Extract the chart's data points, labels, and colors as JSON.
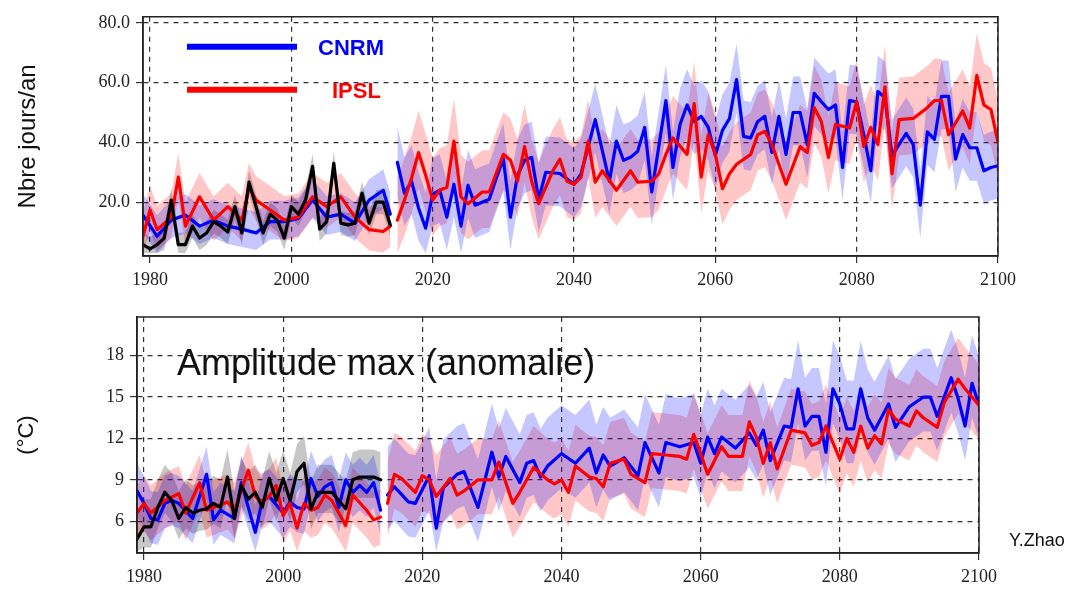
{
  "chart_data": [
    {
      "type": "line",
      "ylabel": "Nbre jours/an",
      "legend": "top left",
      "grid": true,
      "xlim": [
        1979,
        2100
      ],
      "xticks": [
        1980,
        2000,
        2020,
        2040,
        2060,
        2080,
        2100
      ],
      "ylim": [
        2,
        82
      ],
      "yticks": [
        {
          "value": 20,
          "label": "20.0"
        },
        {
          "value": 40,
          "label": "40.0"
        },
        {
          "value": 60,
          "label": "60.0"
        },
        {
          "value": 80,
          "label": "80.0"
        }
      ],
      "series": [
        {
          "name": "CNRM",
          "color": "#0000ff",
          "x": [
            1979,
            1981,
            1983,
            1985,
            1987,
            1989,
            1991,
            1993,
            1995,
            1997,
            1999,
            2001,
            2003,
            2005,
            2007,
            2009,
            2011,
            2013,
            2014,
            2014.5,
            2015,
            2016,
            2017,
            2018,
            2019,
            2020,
            2021,
            2022,
            2023,
            2024,
            2025,
            2026,
            2027,
            2028,
            2029,
            2030,
            2031,
            2032,
            2033,
            2034,
            2035,
            2036,
            2038,
            2040,
            2041,
            2043,
            2045,
            2046,
            2047,
            2048,
            2049,
            2050,
            2051,
            2053,
            2054,
            2055,
            2056,
            2057,
            2058,
            2059,
            2060,
            2061,
            2062,
            2063,
            2064,
            2065,
            2066,
            2067,
            2068,
            2069,
            2070,
            2071,
            2072,
            2073,
            2074,
            2075,
            2076,
            2077,
            2078,
            2079,
            2080,
            2081,
            2082,
            2083,
            2084,
            2085,
            2087,
            2088,
            2089,
            2090,
            2091,
            2092,
            2093,
            2094,
            2095,
            2096,
            2097,
            2098,
            2099,
            2100
          ],
          "values": [
            15.7,
            8.6,
            14,
            15.7,
            12,
            14,
            12,
            11,
            9.7,
            13.5,
            13.5,
            14.6,
            20.7,
            15,
            16,
            13,
            20.7,
            24,
            16,
            null,
            33.3,
            23,
            27,
            18,
            11.3,
            22.7,
            24,
            15,
            26,
            12,
            25.6,
            19,
            20,
            21,
            28,
            34.5,
            15,
            29,
            34,
            35,
            21,
            30,
            29.6,
            26,
            29.5,
            47.6,
            27,
            40.4,
            34,
            35,
            37,
            45,
            23.4,
            54,
            31.6,
            46,
            52.5,
            47,
            48.7,
            45,
            35.6,
            44,
            48,
            61,
            42,
            41.5,
            47,
            48.7,
            36.6,
            48.7,
            36,
            50,
            50,
            39.3,
            56.4,
            53.6,
            51,
            52.5,
            31.6,
            54,
            53.6,
            42.6,
            30.5,
            57,
            55,
            35.6,
            43,
            39.3,
            19,
            43.5,
            41,
            55.4,
            55.4,
            34.4,
            42.6,
            38.2,
            38.2,
            30.5,
            31.6,
            32.2
          ],
          "lower": [
            9.7,
            3,
            8,
            9.7,
            6,
            8,
            6,
            5,
            4,
            7.5,
            7.5,
            8.6,
            14.7,
            9,
            10,
            7,
            14.7,
            18,
            10,
            null,
            22,
            12,
            16,
            7,
            3,
            12,
            13,
            4,
            15,
            3,
            14.6,
            8,
            9,
            10,
            17,
            23.5,
            4,
            18,
            23,
            24,
            10,
            19,
            18.6,
            15,
            18.5,
            36.6,
            16,
            29.4,
            23,
            24,
            26,
            34,
            12.4,
            43,
            20.6,
            35,
            41.5,
            36,
            37.7,
            34,
            24.6,
            33,
            37,
            50,
            31,
            30.5,
            36,
            37.7,
            25.6,
            37.7,
            25,
            39,
            39,
            28.3,
            45.4,
            42.6,
            40,
            41.5,
            20.6,
            43,
            42.6,
            31.6,
            19.5,
            46,
            44,
            24.6,
            32,
            28.3,
            8,
            32.5,
            30,
            44.4,
            44.4,
            23.4,
            31.6,
            27.2,
            27.2,
            19.5,
            20.6,
            21.2
          ],
          "upper": [
            22.7,
            15.6,
            21,
            22.7,
            19,
            21,
            19,
            18,
            16.7,
            20.5,
            20.5,
            21.6,
            27.7,
            22,
            23,
            20,
            27.7,
            31,
            23,
            null,
            45.3,
            35,
            39,
            30,
            23.3,
            34.7,
            36,
            27,
            38,
            24,
            37.6,
            31,
            32,
            33,
            40,
            46.5,
            27,
            41,
            46,
            47,
            33,
            42,
            41.6,
            38,
            41.5,
            59.6,
            39,
            52.4,
            46,
            47,
            49,
            57,
            35.4,
            66,
            43.6,
            58,
            64.5,
            59,
            60.7,
            57,
            47.6,
            56,
            60,
            73,
            54,
            53.5,
            59,
            60.7,
            48.6,
            60.7,
            48,
            62,
            62,
            51.3,
            68.4,
            65.6,
            63,
            64.5,
            43.6,
            66,
            65.6,
            54.6,
            42.5,
            69,
            67,
            47.6,
            55,
            51.3,
            31,
            55.5,
            53,
            67.4,
            67.4,
            46.4,
            54.6,
            50.2,
            50.2,
            42.5,
            43.6,
            44.2
          ]
        },
        {
          "name": "IPSL",
          "color": "#ff0000",
          "x": [
            1979,
            1980,
            1981,
            1983,
            1984,
            1985,
            1987,
            1989,
            1991,
            1993,
            1994,
            1995,
            1997,
            1999,
            2001,
            2003,
            2005,
            2007,
            2009,
            2011,
            2013,
            2014,
            2014.5,
            2015,
            2016,
            2017,
            2018,
            2019,
            2020,
            2021,
            2022,
            2023,
            2024,
            2025,
            2027,
            2028,
            2030,
            2031,
            2032,
            2033,
            2034,
            2035,
            2037,
            2038,
            2039,
            2040,
            2041,
            2042,
            2043,
            2044,
            2046,
            2048,
            2049,
            2051,
            2052,
            2053,
            2054,
            2056,
            2057,
            2058,
            2059,
            2060,
            2061,
            2062,
            2063,
            2065,
            2066,
            2067,
            2068,
            2070,
            2072,
            2073,
            2074,
            2075,
            2076,
            2077,
            2079,
            2080,
            2081,
            2082,
            2083,
            2084,
            2085,
            2086,
            2088,
            2090,
            2091,
            2092,
            2093,
            2095,
            2096,
            2097,
            2098,
            2099,
            2100
          ],
          "values": [
            8.6,
            17.4,
            10.8,
            15,
            28.4,
            12,
            21.8,
            14,
            18.5,
            14,
            25,
            20.7,
            17.4,
            14,
            15,
            21.8,
            18.5,
            21.8,
            15,
            10.8,
            10.2,
            12,
            null,
            14,
            20.7,
            28,
            36.6,
            29,
            20.7,
            24,
            25,
            40.4,
            21.8,
            19.5,
            23.4,
            23.4,
            36,
            34,
            27,
            38.6,
            27,
            19.5,
            30.5,
            34.4,
            27,
            26,
            28.4,
            40.4,
            26.7,
            30.5,
            24,
            30.5,
            26.7,
            27,
            29.5,
            36,
            41.5,
            36,
            53,
            28.4,
            42.6,
            36,
            24.5,
            29.5,
            32.7,
            36,
            42.6,
            43.7,
            39.3,
            26,
            38.6,
            36.6,
            51.6,
            47,
            35,
            46,
            44.8,
            53.6,
            38.6,
            45,
            39.3,
            58.6,
            29.5,
            47.6,
            48,
            51.6,
            54,
            54,
            42.6,
            50.5,
            44.8,
            62.4,
            52.5,
            51,
            40
          ],
          "lower": [
            3,
            10.4,
            3.8,
            8,
            21.4,
            5,
            14.8,
            7,
            11.5,
            7,
            18,
            13.7,
            10.4,
            7,
            8,
            14.8,
            11.5,
            14.8,
            8,
            3.8,
            3.2,
            5,
            null,
            3,
            8.7,
            16,
            24.6,
            17,
            8.7,
            12,
            13,
            28.4,
            9.8,
            7.5,
            11.4,
            11.4,
            24,
            22,
            15,
            26.6,
            15,
            7.5,
            18.5,
            22.4,
            15,
            14,
            16.4,
            28.4,
            14.7,
            18.5,
            12,
            18.5,
            14.7,
            15,
            17.5,
            24,
            29.5,
            24,
            41,
            16.4,
            30.6,
            24,
            12.5,
            17.5,
            20.7,
            24,
            30.6,
            31.7,
            27.3,
            14,
            26.6,
            24.6,
            39.6,
            35,
            23,
            34,
            32.8,
            41.6,
            26.6,
            33,
            27.3,
            46.6,
            17.5,
            35.6,
            36,
            39.6,
            42,
            42,
            30.6,
            38.5,
            32.8,
            50.4,
            40.5,
            39,
            28
          ],
          "upper": [
            16.6,
            25.4,
            18.8,
            23,
            36.4,
            20,
            29.8,
            22,
            26.5,
            22,
            33,
            28.7,
            25.4,
            22,
            23,
            29.8,
            26.5,
            29.8,
            23,
            18.8,
            18.2,
            20,
            null,
            28,
            34.7,
            42,
            50.6,
            43,
            34.7,
            38,
            39,
            54.4,
            35.8,
            33.5,
            37.4,
            37.4,
            50,
            48,
            41,
            52.6,
            41,
            33.5,
            44.5,
            48.4,
            41,
            40,
            42.4,
            54.4,
            40.7,
            44.5,
            38,
            44.5,
            40.7,
            41,
            43.5,
            50,
            55.5,
            50,
            67,
            42.4,
            56.6,
            50,
            38.5,
            43.5,
            46.7,
            50,
            56.6,
            57.7,
            53.3,
            40,
            52.6,
            50.6,
            65.6,
            61,
            49,
            60,
            58.8,
            67.6,
            52.6,
            59,
            53.3,
            72.6,
            43.5,
            61.6,
            62,
            65.6,
            68,
            68,
            56.6,
            64.5,
            58.8,
            76.4,
            66.5,
            65,
            54
          ]
        },
        {
          "color": "#000000",
          "x": [
            1979,
            1980,
            1981,
            1982,
            1983,
            1984,
            1985,
            1986,
            1987,
            1988,
            1989,
            1990,
            1991,
            1992,
            1993,
            1994,
            1995,
            1996,
            1997,
            1998,
            1999,
            2000,
            2001,
            2002,
            2003,
            2004,
            2005,
            2006,
            2007,
            2008,
            2009,
            2010,
            2011,
            2012,
            2013,
            2014
          ],
          "values": [
            5.8,
            4.4,
            5.8,
            8,
            20.7,
            5.8,
            5.8,
            12,
            8,
            9.7,
            13.5,
            12,
            10,
            18.5,
            9.7,
            26.7,
            18.5,
            9.7,
            16,
            14,
            8,
            18.5,
            16,
            20.7,
            32,
            11,
            13.5,
            33,
            13,
            12.4,
            13,
            23,
            13,
            20,
            20,
            12.4
          ],
          "lower": [
            3,
            3,
            3,
            4,
            16.7,
            3,
            3,
            8,
            4,
            5.7,
            9.5,
            8,
            6,
            14.5,
            5.7,
            22.7,
            14.5,
            5.7,
            12,
            10,
            4,
            14.5,
            12,
            16.7,
            28,
            7,
            9.5,
            29,
            9,
            8.4,
            9,
            19,
            9,
            16,
            16,
            8.4
          ],
          "upper": [
            9.8,
            8.4,
            9.8,
            12,
            24.7,
            9.8,
            9.8,
            16,
            12,
            13.7,
            17.5,
            16,
            14,
            22.5,
            13.7,
            30.7,
            22.5,
            13.7,
            20,
            18,
            12,
            22.5,
            20,
            24.7,
            36,
            15,
            17.5,
            37,
            17,
            16.4,
            17,
            27,
            17,
            24,
            24,
            16.4
          ]
        }
      ]
    },
    {
      "type": "line",
      "title": "Amplitude max (anomalie)",
      "ylabel": "(°C)",
      "grid": true,
      "xlim": [
        1979,
        2100
      ],
      "xticks": [
        1980,
        2000,
        2020,
        2040,
        2060,
        2080,
        2100
      ],
      "ylim": [
        3.7,
        20.8
      ],
      "yticks": [
        6,
        9,
        12,
        15,
        18
      ],
      "annotations": [
        "Y.Zhao"
      ],
      "series": [
        {
          "color": "#0000ff",
          "x": [
            1979,
            1980,
            1981,
            1982,
            1983,
            1984,
            1985,
            1987,
            1989,
            1990,
            1991,
            1993,
            1994,
            1996,
            1997,
            1998,
            2000,
            2001,
            2002,
            2003,
            2004,
            2005,
            2006,
            2007,
            2008,
            2009,
            2010,
            2011,
            2012,
            2013,
            2014,
            2014.5,
            2015,
            2016,
            2018,
            2019,
            2021,
            2022,
            2023,
            2025,
            2026,
            2028,
            2030,
            2031,
            2032,
            2034,
            2035,
            2036,
            2037,
            2038,
            2040,
            2042,
            2044,
            2045,
            2046,
            2047,
            2049,
            2051,
            2052,
            2054,
            2055,
            2057,
            2059,
            2060,
            2061,
            2062,
            2063,
            2065,
            2067,
            2068,
            2069,
            2070,
            2072,
            2073,
            2074,
            2075,
            2076,
            2077,
            2078,
            2079,
            2080,
            2081,
            2082,
            2083,
            2084,
            2085,
            2087,
            2088,
            2090,
            2092,
            2093,
            2094,
            2096,
            2097,
            2098,
            2099,
            2100
          ],
          "values": [
            8.2,
            7.3,
            6.2,
            6.1,
            7.3,
            7.5,
            7.3,
            6.2,
            9.4,
            6.1,
            6.8,
            6.2,
            8.8,
            5.2,
            7.5,
            7.8,
            6.6,
            7.4,
            7,
            6.9,
            9.1,
            7.8,
            8.5,
            8.8,
            7,
            9,
            8.1,
            8.6,
            8.1,
            8.8,
            6.8,
            null,
            7.9,
            8.5,
            7.4,
            7.3,
            9.3,
            5.5,
            8.4,
            9.4,
            9.6,
            7,
            11,
            9.2,
            10.7,
            8.8,
            10.2,
            10.4,
            9.2,
            10,
            10.9,
            10.2,
            11.3,
            9.5,
            10.8,
            10,
            10.6,
            9.3,
            11.7,
            9.5,
            11.7,
            11.4,
            11.7,
            10.2,
            12.1,
            10.9,
            12.1,
            11.3,
            12.4,
            11.5,
            12.6,
            10.4,
            12.9,
            12.8,
            15.6,
            12.9,
            13.6,
            13.6,
            11,
            15.6,
            14.5,
            12.7,
            12.7,
            15.6,
            13.5,
            12.6,
            14.5,
            12.8,
            14.3,
            15,
            15,
            13.6,
            16.4,
            14.9,
            12.9,
            16,
            14.4
          ],
          "lower": [
            6.4,
            5.5,
            4.4,
            4.3,
            5.5,
            5.7,
            5.5,
            4.4,
            7.6,
            4.3,
            5,
            4.4,
            7,
            3.8,
            5.7,
            6,
            4.8,
            5.6,
            5.2,
            5.1,
            7.3,
            6,
            6.7,
            7,
            5.2,
            7.2,
            6.3,
            6.8,
            6.3,
            7,
            5,
            null,
            5.4,
            6,
            4.9,
            4.8,
            6.8,
            3.8,
            5.9,
            6.9,
            7.1,
            4.5,
            8.5,
            6.7,
            8.2,
            6.3,
            7.7,
            7.9,
            6.7,
            7.5,
            8.4,
            7.7,
            8.8,
            7,
            8.3,
            7.5,
            8.1,
            6.8,
            9.2,
            7,
            9.2,
            8.9,
            9.2,
            7.7,
            9.6,
            8.4,
            9.6,
            8.8,
            9.9,
            9,
            10.1,
            7.9,
            10.4,
            10.3,
            13.1,
            10.4,
            11.1,
            11.1,
            8.5,
            13.1,
            12,
            10.2,
            10.2,
            13.1,
            11,
            10.1,
            12,
            10.3,
            11.8,
            12.5,
            12.5,
            11.1,
            13.9,
            12.4,
            10.4,
            13.5,
            11.9
          ],
          "upper": [
            10.2,
            9.3,
            8.2,
            8.1,
            9.3,
            9.5,
            9.3,
            8.2,
            11.4,
            8.1,
            8.8,
            8.2,
            10.8,
            7.2,
            9.5,
            9.8,
            8.6,
            9.4,
            9,
            8.9,
            11.1,
            9.8,
            10.5,
            10.8,
            9,
            11,
            10.1,
            10.6,
            10.1,
            10.8,
            8.8,
            null,
            11.4,
            12,
            10.9,
            10.8,
            12.8,
            9,
            11.9,
            12.9,
            13.1,
            10.5,
            14.5,
            12.7,
            14.2,
            12.3,
            13.7,
            13.9,
            12.7,
            13.5,
            14.4,
            13.7,
            14.8,
            13,
            14.3,
            13.5,
            14.1,
            12.8,
            15.2,
            13,
            15.2,
            14.9,
            15.2,
            13.7,
            15.6,
            14.4,
            15.6,
            14.8,
            15.9,
            15,
            16.1,
            13.9,
            16.4,
            16.3,
            19.1,
            16.4,
            17.1,
            17.1,
            14.5,
            19.1,
            18,
            16.2,
            16.2,
            19.1,
            17,
            16.1,
            18,
            16.3,
            17.8,
            18.5,
            18.5,
            17.1,
            19.9,
            18.4,
            16.4,
            19.5,
            17.9
          ]
        },
        {
          "color": "#ff0000",
          "x": [
            1979,
            1980,
            1981,
            1983,
            1985,
            1986,
            1988,
            1989,
            1990,
            1992,
            1993,
            1995,
            1996,
            1997,
            1998,
            1999,
            2000,
            2001,
            2002,
            2003,
            2004,
            2005,
            2006,
            2007,
            2009,
            2010,
            2012,
            2013,
            2014,
            2014.5,
            2015,
            2016,
            2017,
            2019,
            2020,
            2021,
            2022,
            2024,
            2025,
            2026,
            2028,
            2030,
            2031,
            2033,
            2034,
            2036,
            2038,
            2039,
            2040,
            2041,
            2042,
            2044,
            2045,
            2046,
            2047,
            2049,
            2050,
            2052,
            2053,
            2055,
            2057,
            2058,
            2059,
            2060,
            2061,
            2063,
            2064,
            2066,
            2067,
            2068,
            2069,
            2070,
            2071,
            2073,
            2075,
            2076,
            2077,
            2078,
            2080,
            2081,
            2082,
            2083,
            2084,
            2085,
            2086,
            2087,
            2088,
            2090,
            2091,
            2092,
            2094,
            2095,
            2097,
            2098,
            2099,
            2100
          ],
          "values": [
            6.6,
            7.3,
            6.6,
            7.5,
            8,
            6.6,
            8.8,
            6.8,
            7,
            7.4,
            6.8,
            9.7,
            7.8,
            7.4,
            7.8,
            8.6,
            6.4,
            7.3,
            5.5,
            7.3,
            6.8,
            7,
            7.9,
            7.5,
            5.7,
            7.9,
            6.8,
            6.1,
            6.3,
            null,
            7.3,
            9.4,
            9.1,
            8.1,
            9.3,
            9,
            7.8,
            9.1,
            7.9,
            8.2,
            9,
            9,
            10.3,
            7.3,
            8.1,
            9.9,
            9,
            8.7,
            9,
            8.1,
            10,
            9.2,
            9.1,
            8.5,
            10.2,
            10.5,
            9.4,
            8.8,
            10.9,
            10.8,
            10.7,
            10.5,
            12.3,
            10.9,
            9.4,
            11.4,
            10.7,
            10.7,
            13.2,
            12.1,
            10.2,
            11.7,
            9.8,
            12.6,
            12.4,
            11.5,
            11.7,
            12.9,
            10.5,
            12,
            11,
            12.9,
            11.3,
            12.2,
            11.6,
            14.1,
            13.4,
            12.9,
            14,
            13.5,
            12.8,
            14.6,
            16.3,
            15.6,
            15,
            14.4
          ],
          "lower": [
            4.6,
            5.3,
            4.6,
            5.5,
            6,
            4.6,
            6.8,
            4.8,
            5,
            5.4,
            4.8,
            7.7,
            5.8,
            5.4,
            5.8,
            6.6,
            4.4,
            5.3,
            3.8,
            5.3,
            4.8,
            5,
            5.9,
            5.5,
            3.8,
            5.9,
            4.8,
            4.1,
            4.3,
            null,
            4.8,
            6.9,
            6.6,
            5.6,
            6.8,
            6.5,
            5.3,
            6.6,
            5.4,
            5.7,
            6.5,
            6.5,
            7.8,
            4.8,
            5.6,
            7.4,
            6.5,
            6.2,
            6.5,
            5.6,
            7.5,
            6.7,
            6.6,
            6,
            7.7,
            8,
            6.9,
            6.3,
            8.4,
            8.3,
            8.2,
            8,
            9.8,
            8.4,
            6.9,
            8.9,
            8.2,
            8.2,
            10.7,
            9.6,
            7.7,
            9.2,
            7.3,
            10.1,
            9.9,
            9,
            9.2,
            10.4,
            8,
            9.5,
            8.5,
            10.4,
            8.8,
            9.7,
            9.1,
            11.6,
            10.9,
            10.4,
            11.5,
            11,
            10.3,
            12.1,
            13.8,
            13.1,
            12.5,
            11.9
          ],
          "upper": [
            8.6,
            9.3,
            8.6,
            9.5,
            10,
            8.6,
            10.8,
            8.8,
            9,
            9.4,
            8.8,
            11.7,
            9.8,
            9.4,
            9.8,
            10.6,
            8.4,
            9.3,
            7.5,
            9.3,
            8.8,
            9,
            9.9,
            9.5,
            7.7,
            9.9,
            8.8,
            8.1,
            8.3,
            null,
            10.3,
            12.4,
            12.1,
            11.1,
            12.3,
            12,
            10.8,
            12.1,
            10.9,
            11.2,
            12,
            12,
            13.3,
            10.3,
            11.1,
            12.9,
            12,
            11.7,
            12,
            11.1,
            13,
            12.2,
            12.1,
            11.5,
            13.2,
            13.5,
            12.4,
            11.8,
            13.9,
            13.8,
            13.7,
            13.5,
            15.3,
            13.9,
            12.4,
            14.4,
            13.7,
            13.7,
            16.2,
            15.1,
            13.2,
            14.7,
            12.8,
            15.6,
            15.4,
            14.5,
            14.7,
            15.9,
            13.5,
            15,
            14,
            15.9,
            14.3,
            15.2,
            14.6,
            17.1,
            16.4,
            15.9,
            17,
            16.5,
            15.8,
            17.6,
            19.3,
            18.6,
            18,
            17.4
          ]
        },
        {
          "color": "#000000",
          "x": [
            1979,
            1980,
            1981,
            1982,
            1983,
            1984,
            1985,
            1986,
            1987,
            1988,
            1989,
            1990,
            1991,
            1992,
            1993,
            1994,
            1995,
            1996,
            1997,
            1998,
            1999,
            2000,
            2001,
            2002,
            2003,
            2004,
            2005,
            2006,
            2007,
            2008,
            2009,
            2010,
            2011,
            2012,
            2013,
            2014
          ],
          "values": [
            4.7,
            5.6,
            5.6,
            7,
            8.1,
            7.5,
            6.2,
            7,
            6.6,
            6.8,
            6.9,
            7.3,
            7,
            9.2,
            6.2,
            8.6,
            7.6,
            8.1,
            7,
            9.1,
            7.5,
            9.1,
            7.5,
            9.6,
            10.2,
            6.9,
            8.1,
            8.1,
            8.1,
            7.5,
            6.9,
            9,
            9.2,
            9.2,
            9.2,
            9
          ],
          "lower": [
            3.8,
            4.1,
            4.1,
            5.5,
            6.6,
            6,
            4.7,
            5.5,
            5.1,
            5.3,
            5.4,
            5.8,
            5.5,
            7.7,
            4.7,
            7.1,
            6.1,
            6.6,
            5.5,
            7.6,
            6,
            7.6,
            6,
            8.1,
            8.7,
            5.4,
            6.6,
            6.6,
            6.6,
            6,
            5.4,
            7.5,
            7.7,
            7.7,
            7.7,
            7.5
          ],
          "upper": [
            6.7,
            7.6,
            7.6,
            9,
            10.1,
            9.5,
            8.2,
            9,
            8.6,
            8.8,
            8.9,
            9.3,
            9,
            11.2,
            8.2,
            10.6,
            9.6,
            10.1,
            9,
            11.1,
            9.5,
            11.1,
            9.5,
            11.6,
            12.2,
            8.9,
            10.1,
            10.1,
            10.1,
            9.5,
            8.9,
            11,
            11.2,
            11.2,
            11.2,
            11
          ]
        }
      ]
    }
  ]
}
